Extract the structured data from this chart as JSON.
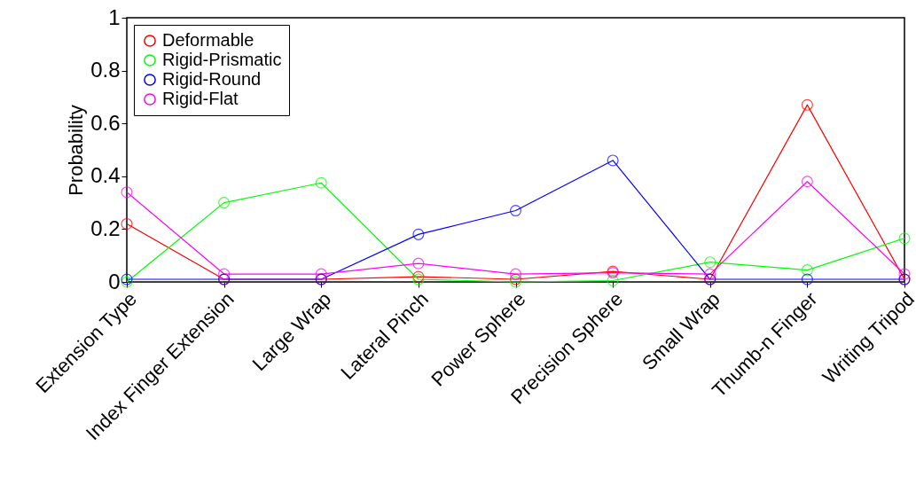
{
  "chart_data": {
    "type": "line",
    "ylabel": "Probability",
    "categories": [
      "Extension Type",
      "Index Finger Extension",
      "Large Wrap",
      "Lateral Pinch",
      "Power Sphere",
      "Precision Sphere",
      "Small Wrap",
      "Thumb-n Finger",
      "Writing Tripod"
    ],
    "series": [
      {
        "name": "Deformable",
        "color": "#ff0000",
        "values": [
          0.22,
          0.01,
          0.01,
          0.02,
          0.01,
          0.04,
          0.01,
          0.67,
          0.01
        ]
      },
      {
        "name": "Rigid-Prismatic",
        "color": "#00ff00",
        "values": [
          0,
          0.3,
          0.375,
          0.01,
          0,
          0.005,
          0.075,
          0.045,
          0.165
        ]
      },
      {
        "name": "Rigid-Round",
        "color": "#0000ff",
        "values": [
          0.01,
          0.01,
          0.01,
          0.18,
          0.27,
          0.46,
          0.01,
          0.01,
          0.01
        ]
      },
      {
        "name": "Rigid-Flat",
        "color": "#ff00ff",
        "values": [
          0.34,
          0.03,
          0.03,
          0.07,
          0.03,
          0.035,
          0.03,
          0.38,
          0.03
        ]
      }
    ],
    "ylim": [
      0,
      1
    ],
    "yticks": [
      0,
      0.2,
      0.4,
      0.6,
      0.8,
      1
    ],
    "legend": "top left",
    "marker": "circle",
    "line_style": "solid"
  }
}
